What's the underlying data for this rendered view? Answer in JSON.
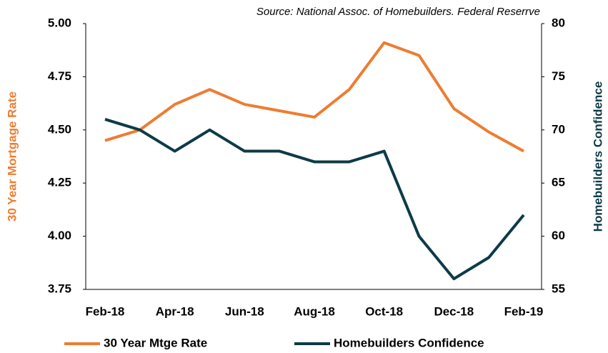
{
  "chart_data": {
    "type": "line",
    "source": "Source: National Assoc. of Homebuilders. Federal Reserrve",
    "y_label": "30 Year Mortgage Rate",
    "y2_label": "Homebuilders Confidence",
    "categories": [
      "Feb-18",
      null,
      "Apr-18",
      null,
      "Jun-18",
      null,
      "Aug-18",
      null,
      "Oct-18",
      null,
      "Dec-18",
      null,
      "Feb-19"
    ],
    "series": [
      {
        "name": "30 Year Mtge Rate",
        "color": "#ed7d31",
        "values": [
          4.45,
          4.5,
          4.62,
          4.69,
          4.62,
          4.59,
          4.56,
          4.69,
          4.91,
          4.85,
          4.6,
          4.49,
          4.4
        ]
      },
      {
        "name": "Homebuilders Confidence",
        "color": "#0d3b47",
        "axis": "y2",
        "values": [
          71,
          70,
          68,
          70,
          68,
          68,
          67,
          67,
          68,
          60,
          56,
          58,
          62
        ]
      }
    ],
    "ylim": [
      3.75,
      5.0
    ],
    "yticks": [
      {
        "value": 3.75,
        "label": "3.75"
      },
      {
        "value": 4.0,
        "label": "4.00"
      },
      {
        "value": 4.25,
        "label": "4.25"
      },
      {
        "value": 4.5,
        "label": "4.50"
      },
      {
        "value": 4.75,
        "label": "4.75"
      },
      {
        "value": 5.0,
        "label": "5.00"
      }
    ],
    "y2lim": [
      55,
      80
    ],
    "y2ticks": [
      55,
      60,
      65,
      70,
      75,
      80
    ],
    "grid": false,
    "legend": "bottom"
  }
}
